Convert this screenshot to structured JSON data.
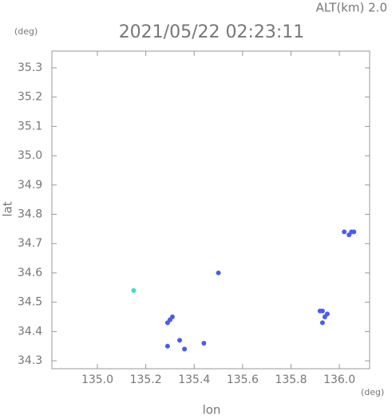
{
  "chart_data": {
    "type": "scatter",
    "altitude_label": "ALT(km) 2.0",
    "title": "2021/05/22 02:23:11",
    "y_unit": "(deg)",
    "x_unit": "(deg)",
    "x_label": "lon",
    "y_label": "lat",
    "xlim": [
      134.812,
      136.125
    ],
    "ylim": [
      34.273,
      35.357
    ],
    "xticks": [
      {
        "value": 135.0,
        "label": "135.0"
      },
      135.2,
      135.4,
      135.6,
      135.8,
      {
        "value": 136.0,
        "label": "136.0"
      }
    ],
    "yticks": [
      35.3,
      35.2,
      35.1,
      {
        "value": 35.0,
        "label": "35.0"
      },
      34.9,
      34.8,
      34.7,
      34.6,
      34.5,
      34.4,
      34.3
    ],
    "x": [
      135.15,
      135.29,
      135.3,
      135.31,
      135.29,
      135.36,
      135.34,
      135.44,
      135.5,
      135.93,
      135.94,
      135.95,
      135.93,
      135.92,
      136.05,
      136.06,
      136.04,
      136.02
    ],
    "y": [
      34.54,
      34.43,
      34.44,
      34.45,
      34.35,
      34.34,
      34.37,
      34.36,
      34.6,
      34.47,
      34.45,
      34.46,
      34.43,
      34.47,
      34.74,
      34.74,
      34.73,
      34.74
    ],
    "colors": [
      "#3fe0c8",
      "#4a5cf0",
      "#4a5cf0",
      "#4a5cf0",
      "#4a5cf0",
      "#4a5cf0",
      "#4a5cf0",
      "#4a5cf0",
      "#4a5cf0",
      "#4a5cf0",
      "#4a5cf0",
      "#4a5cf0",
      "#4a5cf0",
      "#4a5cf0",
      "#4a5cf0",
      "#4a5cf0",
      "#4a5cf0",
      "#4a5cf0"
    ]
  }
}
